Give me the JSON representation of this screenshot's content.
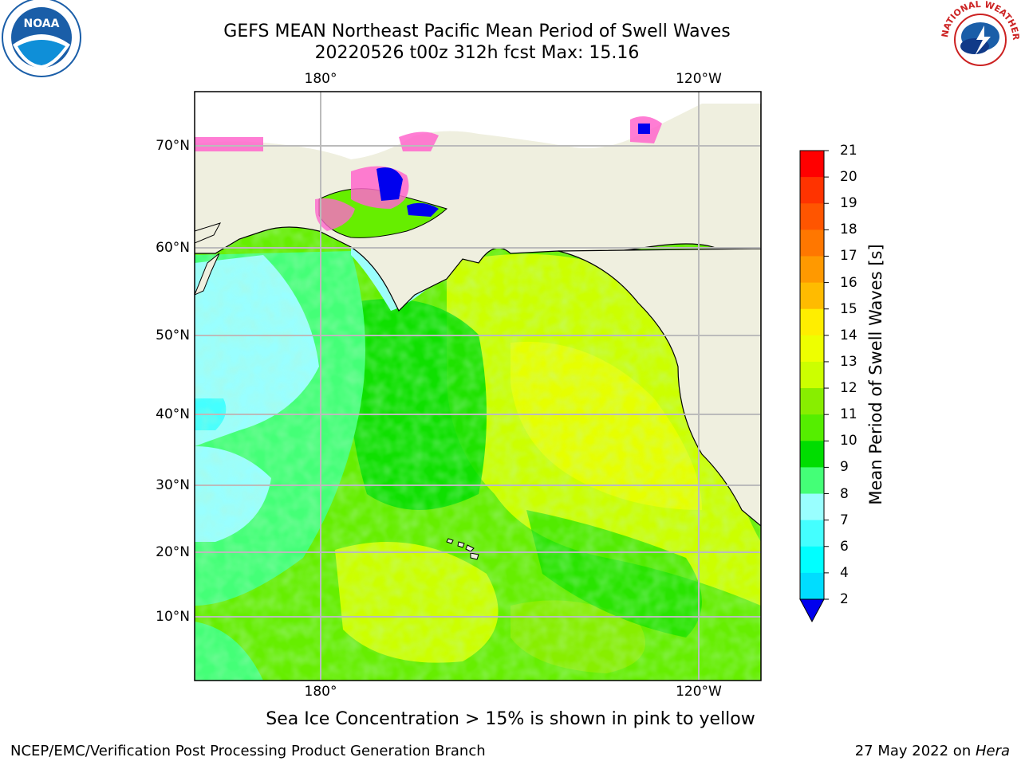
{
  "title_line1": "GEFS MEAN Northeast Pacific Mean Period of Swell Waves",
  "title_line2": "20220526 t00z 312h fcst   Max: 15.16",
  "map": {
    "lat_ticks": [
      "70°N",
      "60°N",
      "50°N",
      "40°N",
      "30°N",
      "20°N",
      "10°N"
    ],
    "lon_ticks": [
      "180°",
      "120°W"
    ],
    "land_color": "#efefdf",
    "ocean_dominant_color": "#66ee00",
    "grid_color": "#bbbbbb"
  },
  "colorbar": {
    "label": "Mean Period of Swell Waves [s]",
    "ticks": [
      "21",
      "20",
      "19",
      "18",
      "17",
      "16",
      "15",
      "14",
      "13",
      "12",
      "11",
      "10",
      "9",
      "8",
      "7",
      "6",
      "4",
      "2"
    ],
    "colors": [
      "#ff0000",
      "#ff3300",
      "#ff5500",
      "#ff7700",
      "#ff9900",
      "#ffbb00",
      "#ffee00",
      "#eeff00",
      "#ccff00",
      "#88ee00",
      "#55ee00",
      "#00dd00",
      "#44ff77",
      "#99ffff",
      "#44ffff",
      "#00ffff",
      "#00ddff",
      "#0077ff"
    ],
    "extend_color": "#0000ee"
  },
  "footnote": "Sea Ice Concentration > 15% is shown in pink to yellow",
  "credit_left": "NCEP/EMC/Verification Post Processing Product Generation Branch",
  "credit_date": "27 May 2022 on ",
  "credit_machine": "Hera",
  "logos": {
    "noaa_text": "NOAA",
    "nws_text": "NATIONAL WEATHER SERVICE"
  }
}
